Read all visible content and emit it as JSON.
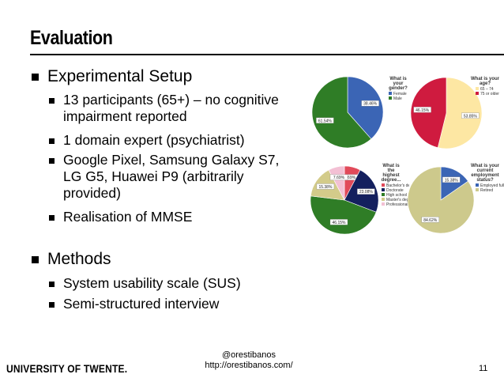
{
  "slide": {
    "title": "Evaluation",
    "bullets": [
      {
        "text": "Experimental Setup",
        "sub": [
          "13 participants (65+) – no cognitive impairment reported",
          "1 domain expert (psychiatrist)",
          "Google Pixel, Samsung Galaxy S7, LG G5, Huawei P9 (arbitrarily provided)",
          "Realisation of MMSE"
        ]
      },
      {
        "text": "Methods",
        "sub": [
          "System usability scale (SUS)",
          "Semi-structured interview"
        ]
      }
    ]
  },
  "footer": {
    "logo": "UNIVERSITY OF TWENTE.",
    "handle": "@orestibanos",
    "url": "http://orestibanos.com/",
    "page": "11"
  },
  "chart_data": [
    {
      "type": "pie",
      "title": "What is your gender?",
      "slices": [
        {
          "label": "Female",
          "value": 38.46,
          "text": "38.46%",
          "color": "#3b65b5"
        },
        {
          "label": "Male",
          "value": 61.54,
          "text": "61.54%",
          "color": "#2f7d26"
        }
      ]
    },
    {
      "type": "pie",
      "title": "What is your age?",
      "slices": [
        {
          "label": "65 – 74",
          "value": 53.85,
          "text": "53.85%",
          "color": "#fde7a3"
        },
        {
          "label": "75 or older",
          "value": 46.15,
          "text": "46.15%",
          "color": "#cf1b3f"
        }
      ]
    },
    {
      "type": "pie",
      "title": "What is the highest degree...",
      "slices": [
        {
          "label": "Bachelor's degree",
          "value": 7.69,
          "text": "7.69%",
          "color": "#e14a5a"
        },
        {
          "label": "Doctorate",
          "value": 23.08,
          "text": "23.08%",
          "color": "#14205e"
        },
        {
          "label": "High school",
          "value": 46.15,
          "text": "46.15%",
          "color": "#2f7d26"
        },
        {
          "label": "Master's degree",
          "value": 15.38,
          "text": "15.38%",
          "color": "#d3cb8a"
        },
        {
          "label": "Professional degree",
          "value": 7.69,
          "text": "7.69%",
          "color": "#f3c0d4"
        }
      ]
    },
    {
      "type": "pie",
      "title": "What is your current employment status?",
      "slices": [
        {
          "label": "Employed full time",
          "value": 15.38,
          "text": "15.38%",
          "color": "#3b65b5"
        },
        {
          "label": "Retired",
          "value": 84.62,
          "text": "84.62%",
          "color": "#cdc98c"
        }
      ]
    }
  ]
}
